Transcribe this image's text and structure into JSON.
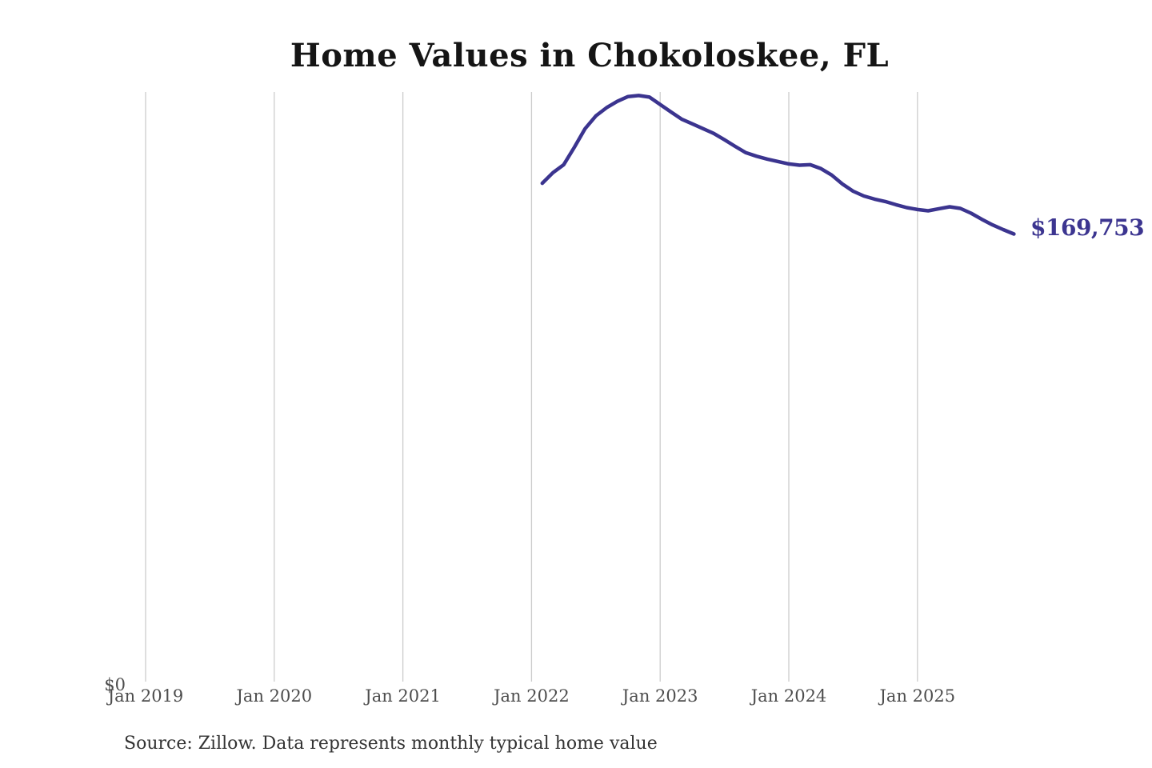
{
  "page": {
    "background": "#ffffff"
  },
  "chart_data": {
    "type": "line",
    "title": "Home Values in Chokoloskee, FL",
    "series_name": "Monthly typical home value",
    "x": [
      "2022-02",
      "2022-03",
      "2022-04",
      "2022-05",
      "2022-06",
      "2022-07",
      "2022-08",
      "2022-09",
      "2022-10",
      "2022-11",
      "2022-12",
      "2023-01",
      "2023-02",
      "2023-03",
      "2023-04",
      "2023-05",
      "2023-06",
      "2023-07",
      "2023-08",
      "2023-09",
      "2023-10",
      "2023-11",
      "2023-12",
      "2024-01",
      "2024-02",
      "2024-03",
      "2024-04",
      "2024-05",
      "2024-06",
      "2024-07",
      "2024-08",
      "2024-09",
      "2024-10",
      "2024-11",
      "2024-12",
      "2025-01",
      "2025-02",
      "2025-03",
      "2025-04",
      "2025-05",
      "2025-06",
      "2025-07",
      "2025-08",
      "2025-09",
      "2025-10"
    ],
    "values": [
      188900,
      192900,
      195900,
      202500,
      209500,
      214300,
      217400,
      219800,
      221600,
      222000,
      221400,
      218600,
      215800,
      213100,
      211300,
      209500,
      207700,
      205300,
      202800,
      200400,
      199100,
      198000,
      197100,
      196200,
      195700,
      195900,
      194400,
      192000,
      188600,
      185900,
      184100,
      182900,
      182000,
      180800,
      179700,
      179000,
      178500,
      179300,
      180000,
      179400,
      177600,
      175300,
      173200,
      171400,
      169753
    ],
    "end_label": "$169,753",
    "latest_value": 169753,
    "y_zero_label": "$0",
    "x_tick_labels": [
      "Jan 2019",
      "Jan 2020",
      "Jan 2021",
      "Jan 2022",
      "Jan 2023",
      "Jan 2024",
      "Jan 2025"
    ],
    "x_tick_months": [
      "2019-01",
      "2020-01",
      "2021-01",
      "2022-01",
      "2023-01",
      "2024-01",
      "2025-01"
    ],
    "xlim": [
      "2019-01",
      "2025-10"
    ],
    "ylim": [
      0,
      223000
    ],
    "grid": true,
    "legend": "none",
    "colors": {
      "line": "#3b348f",
      "end_label": "#3c3590",
      "gridline": "#cccccc",
      "tick_text": "#4d4d4d",
      "title_text": "#151515",
      "source_text": "#333333"
    },
    "source_note": "Source: Zillow. Data represents monthly typical home value"
  }
}
